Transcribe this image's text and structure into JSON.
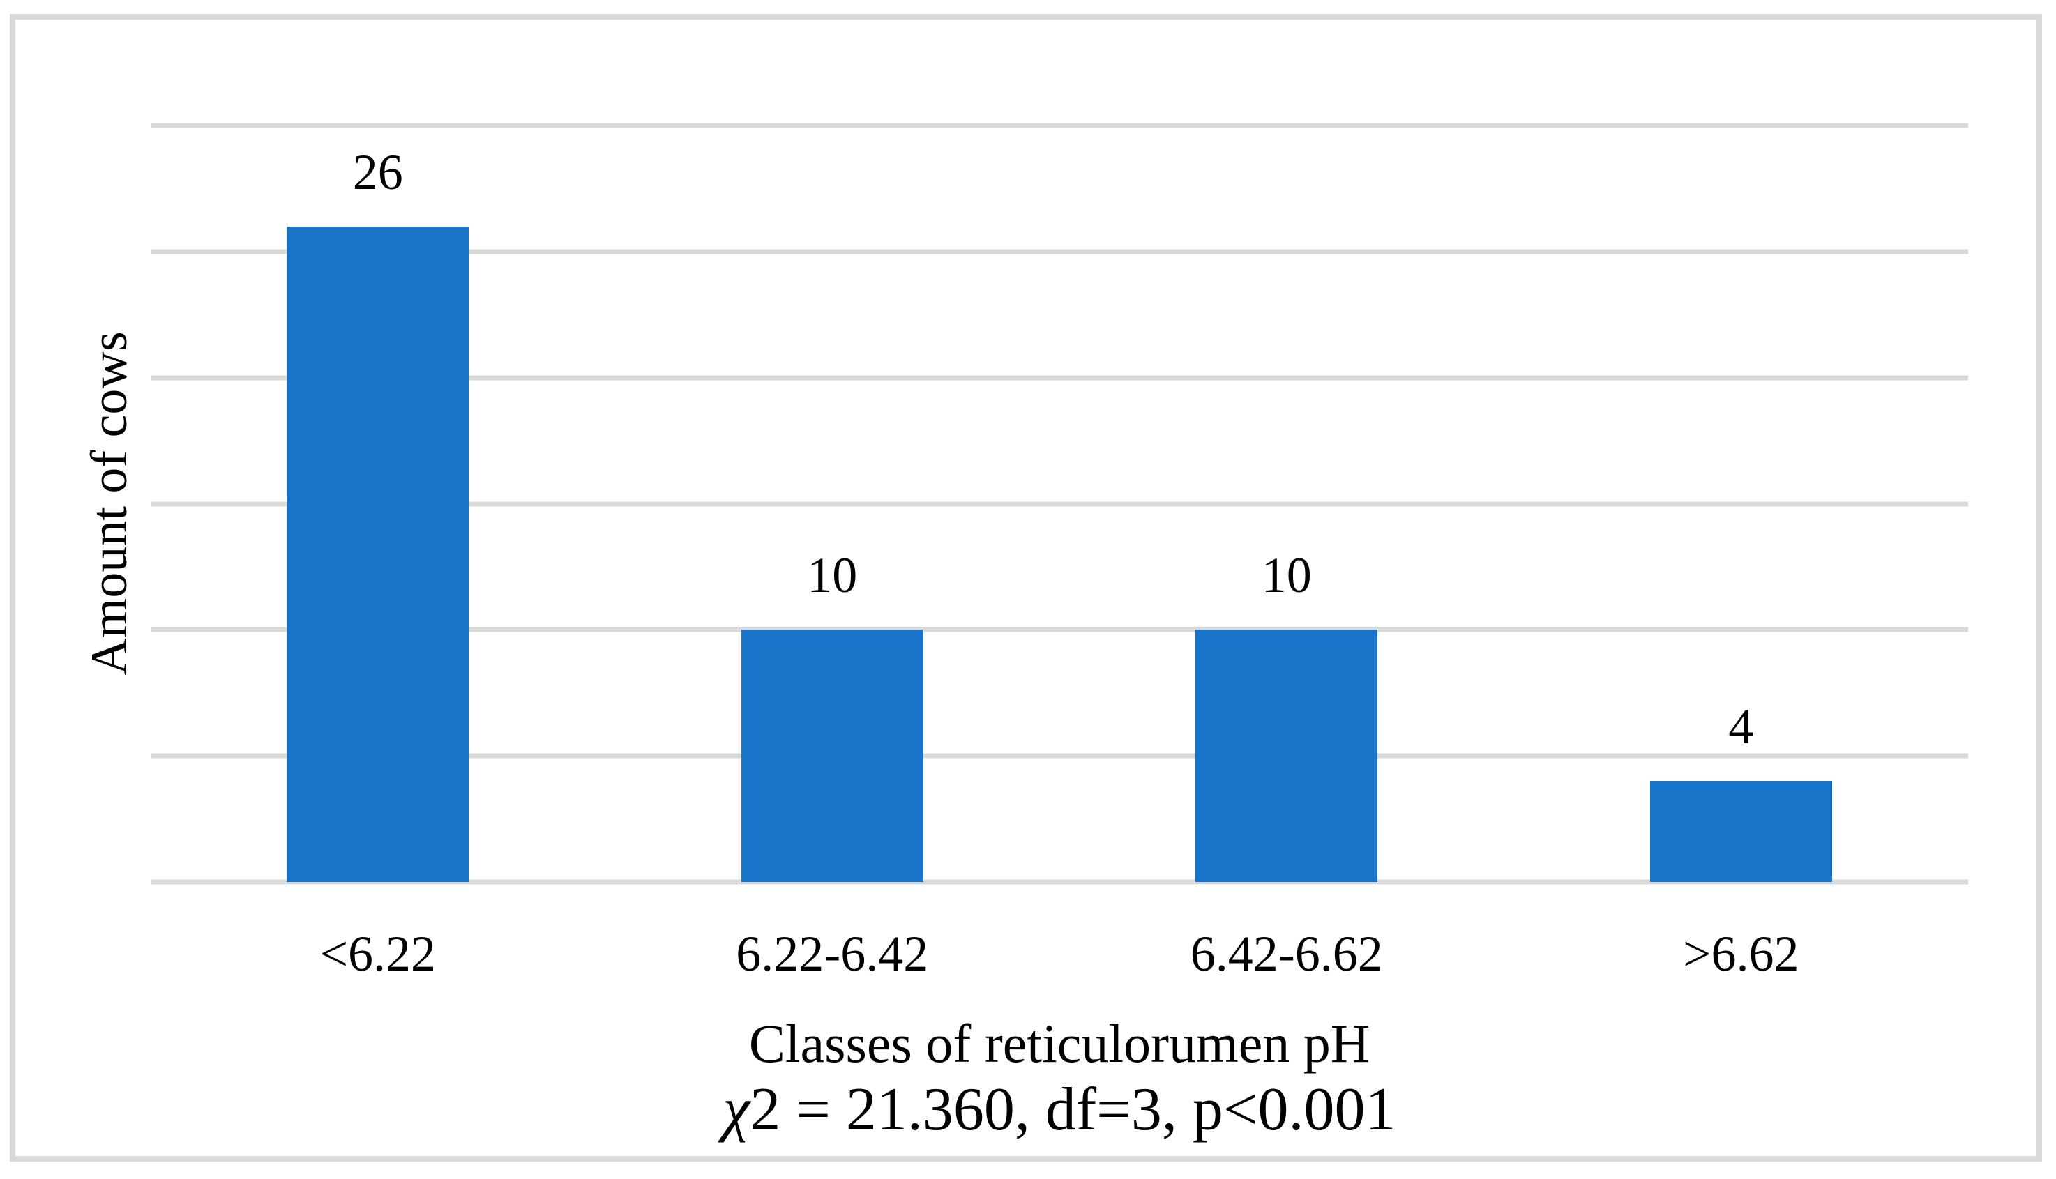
{
  "chart_data": {
    "type": "bar",
    "categories": [
      "<6.22",
      "6.22-6.42",
      "6.42-6.62",
      ">6.62"
    ],
    "values": [
      26,
      10,
      10,
      4
    ],
    "title": "",
    "xlabel": "Classes of reticulorumen pH",
    "ylabel": "Amount of cows",
    "annotation_chi": "χ",
    "annotation_rest": "2 = 21.360, df=3, p<0.001",
    "ylim": [
      0,
      30
    ],
    "gridline_step": 5,
    "grid": true,
    "legend": "none",
    "y_tick_labels_shown": false,
    "bar_color": "#1774C8",
    "grid_color": "#D9D9D9",
    "frame_color": "#D9D9D9",
    "text_color": "#000000"
  }
}
